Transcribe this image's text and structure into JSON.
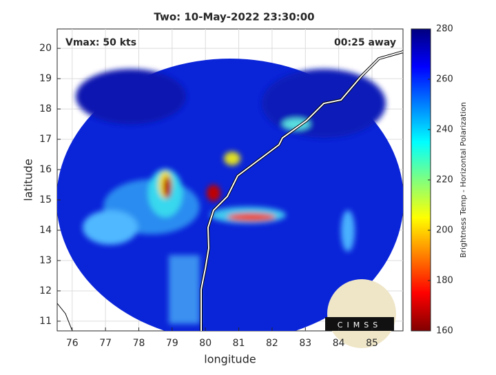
{
  "chart_data": {
    "type": "heatmap",
    "title": "Two: 10-May-2022 23:30:00",
    "annotations": [
      "Vmax: 50 kts",
      "00:25 away"
    ],
    "xlabel": "longitude",
    "ylabel": "latitude",
    "xlim": [
      75.55,
      85.93
    ],
    "xticks": [
      76,
      77,
      78,
      79,
      80,
      81,
      82,
      83,
      84,
      85
    ],
    "ylim": [
      10.68,
      20.64
    ],
    "yticks": [
      11,
      12,
      13,
      14,
      15,
      16,
      17,
      18,
      19,
      20
    ],
    "grid": true,
    "colorbar": {
      "label": "Brightness Temp - Horizontal Polarization",
      "lim": [
        160,
        280
      ],
      "ticks": [
        160,
        180,
        200,
        220,
        240,
        260,
        280
      ]
    },
    "logo": "CIMSS"
  }
}
